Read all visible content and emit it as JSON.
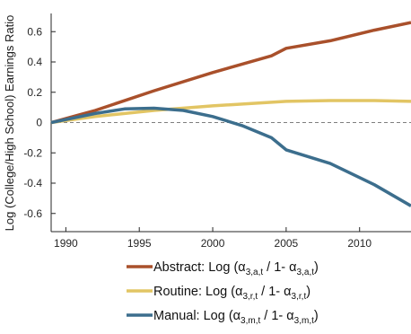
{
  "chart_data": {
    "type": "line",
    "ylabel": "Log (College/High School) Earnings Ratio",
    "xlabel": "",
    "xlim": [
      1989,
      2013.5
    ],
    "ylim": [
      -0.72,
      0.72
    ],
    "x_ticks": [
      1990,
      1995,
      2000,
      2005,
      2010
    ],
    "y_ticks": [
      0.6,
      0.4,
      0.2,
      0,
      -0.2,
      -0.4,
      -0.6
    ],
    "y_tick_labels": [
      "0.6",
      "0.4",
      "0.2",
      "0",
      "-0.2",
      "-0.4",
      "-0.6"
    ],
    "zero_line": "dashed",
    "grid": false,
    "legend_position": "below",
    "series": [
      {
        "name": "Abstract",
        "legend_pre": "Abstract:  Log (α",
        "legend_sub1": "3,a,t",
        "legend_mid": " / 1- α",
        "legend_sub2": "3,a,t",
        "legend_post": ")",
        "color": "#a9502b",
        "x": [
          1989,
          1992,
          1996,
          2000,
          2004,
          2005,
          2008,
          2011,
          2013.5
        ],
        "y": [
          0.0,
          0.08,
          0.21,
          0.33,
          0.44,
          0.49,
          0.54,
          0.61,
          0.66
        ]
      },
      {
        "name": "Routine",
        "legend_pre": "Routine:  Log (α",
        "legend_sub1": "3,r,t",
        "legend_mid": " / 1- α",
        "legend_sub2": "3,r,t",
        "legend_post": ")",
        "color": "#e2c564",
        "x": [
          1989,
          1992,
          1996,
          2000,
          2005,
          2008,
          2011,
          2013.5
        ],
        "y": [
          0.0,
          0.04,
          0.08,
          0.11,
          0.14,
          0.145,
          0.145,
          0.14
        ]
      },
      {
        "name": "Manual",
        "legend_pre": "Manual:  Log (α",
        "legend_sub1": "3,m,t",
        "legend_mid": " / 1- α",
        "legend_sub2": "3,m,t",
        "legend_post": ")",
        "color": "#3c6e8d",
        "x": [
          1989,
          1992,
          1994,
          1996,
          1998,
          2000,
          2002,
          2004,
          2005,
          2008,
          2011,
          2013.5
        ],
        "y": [
          0.0,
          0.06,
          0.09,
          0.095,
          0.08,
          0.04,
          -0.02,
          -0.1,
          -0.18,
          -0.27,
          -0.41,
          -0.55
        ]
      }
    ]
  }
}
